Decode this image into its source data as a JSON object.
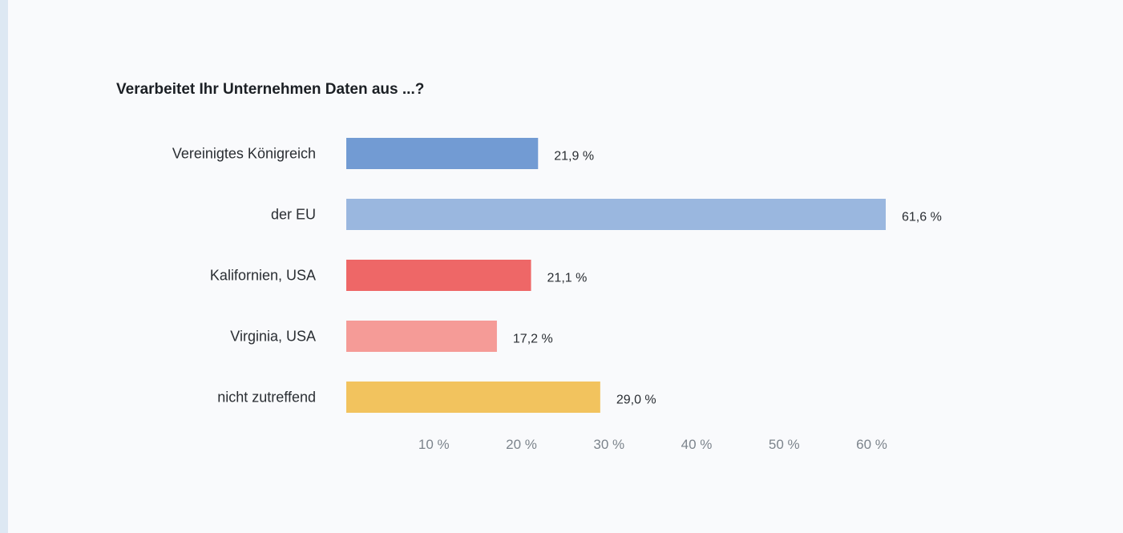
{
  "chart_data": {
    "type": "bar",
    "orientation": "horizontal",
    "title": "Verarbeitet Ihr Unternehmen Daten aus ...?",
    "categories": [
      "Vereinigtes Königreich",
      "der EU",
      "Kalifornien, USA",
      "Virginia, USA",
      "nicht zutreffend"
    ],
    "values": [
      21.9,
      61.6,
      21.1,
      17.2,
      29.0
    ],
    "value_labels": [
      "21,9 %",
      "61,6 %",
      "21,1 %",
      "17,2 %",
      "29,0 %"
    ],
    "colors": [
      "#729bd3",
      "#9ab7df",
      "#ee6767",
      "#f59b97",
      "#f2c35e"
    ],
    "xticks": [
      10,
      20,
      30,
      40,
      50,
      60
    ],
    "xtick_labels": [
      "10 %",
      "20 %",
      "30 %",
      "40 %",
      "50 %",
      "60 %"
    ],
    "xlim": [
      0,
      61.6
    ],
    "xlabel": "",
    "ylabel": "",
    "grid": false,
    "legend": "none"
  }
}
